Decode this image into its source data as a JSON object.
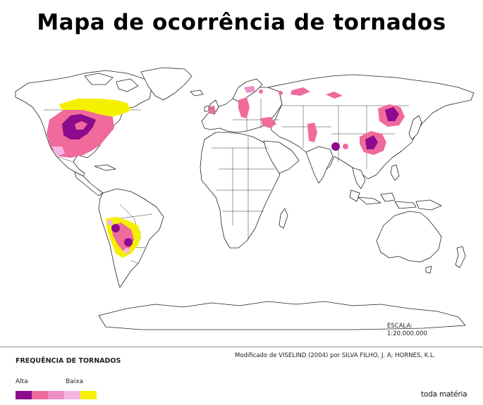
{
  "title": "Mapa de ocorrência de tornados",
  "scale": {
    "label": "ESCALA:",
    "value": "1:20.000.000"
  },
  "credit": "Modificado de VISELIND (2004) por SILVA FILHO, J. A; HORNES, K.L.",
  "legend": {
    "title": "FREQUÊNCIA DE TORNADOS",
    "high_label": "Alta",
    "low_label": "Baixa",
    "colors": [
      "#8b0a8d",
      "#f06a9c",
      "#ef8fc6",
      "#f5b5e2",
      "#f4f000"
    ]
  },
  "brand": "toda matéria"
}
